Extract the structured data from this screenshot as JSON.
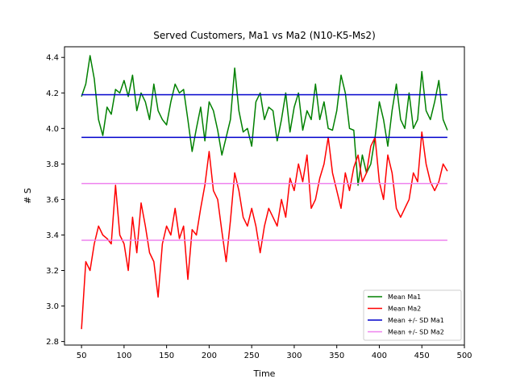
{
  "chart_data": {
    "type": "line",
    "title": "Served Customers, Ma1 vs Ma2 (N10-K5-Ms2)",
    "xlabel": "Time",
    "ylabel": "# S",
    "xlim": [
      30,
      500
    ],
    "ylim": [
      2.78,
      4.46
    ],
    "xticks": [
      50,
      100,
      150,
      200,
      250,
      300,
      350,
      400,
      450,
      500
    ],
    "yticks": [
      2.8,
      3.0,
      3.2,
      3.4,
      3.6,
      3.8,
      4.0,
      4.2,
      4.4
    ],
    "grid": false,
    "legend_position": "lower-right",
    "series": [
      {
        "name": "Mean Ma1",
        "color": "#008000",
        "x": [
          50,
          55,
          60,
          65,
          70,
          75,
          80,
          85,
          90,
          95,
          100,
          105,
          110,
          115,
          120,
          125,
          130,
          135,
          140,
          145,
          150,
          155,
          160,
          165,
          170,
          175,
          180,
          185,
          190,
          195,
          200,
          205,
          210,
          215,
          220,
          225,
          230,
          235,
          240,
          245,
          250,
          255,
          260,
          265,
          270,
          275,
          280,
          285,
          290,
          295,
          300,
          305,
          310,
          315,
          320,
          325,
          330,
          335,
          340,
          345,
          350,
          355,
          360,
          365,
          370,
          375,
          380,
          385,
          390,
          395,
          400,
          405,
          410,
          415,
          420,
          425,
          430,
          435,
          440,
          445,
          450,
          455,
          460,
          465,
          470,
          475,
          480
        ],
        "y": [
          4.18,
          4.25,
          4.41,
          4.28,
          4.05,
          3.96,
          4.12,
          4.08,
          4.22,
          4.2,
          4.27,
          4.18,
          4.3,
          4.1,
          4.2,
          4.15,
          4.05,
          4.25,
          4.1,
          4.05,
          4.02,
          4.15,
          4.25,
          4.2,
          4.22,
          4.05,
          3.87,
          4.0,
          4.12,
          3.93,
          4.15,
          4.1,
          3.99,
          3.85,
          3.95,
          4.05,
          4.34,
          4.1,
          3.98,
          4.0,
          3.9,
          4.15,
          4.2,
          4.05,
          4.12,
          4.1,
          3.93,
          4.05,
          4.2,
          3.98,
          4.12,
          4.2,
          3.99,
          4.1,
          4.05,
          4.25,
          4.05,
          4.15,
          4.0,
          3.99,
          4.1,
          4.3,
          4.2,
          4.0,
          3.99,
          3.68,
          3.85,
          3.75,
          3.8,
          3.95,
          4.15,
          4.05,
          3.9,
          4.1,
          4.25,
          4.05,
          4.0,
          4.2,
          4.0,
          4.05,
          4.32,
          4.1,
          4.05,
          4.15,
          4.27,
          4.05,
          3.99
        ]
      },
      {
        "name": "Mean Ma2",
        "color": "#ff0000",
        "x": [
          50,
          55,
          60,
          65,
          70,
          75,
          80,
          85,
          90,
          95,
          100,
          105,
          110,
          115,
          120,
          125,
          130,
          135,
          140,
          145,
          150,
          155,
          160,
          165,
          170,
          175,
          180,
          185,
          190,
          195,
          200,
          205,
          210,
          215,
          220,
          225,
          230,
          235,
          240,
          245,
          250,
          255,
          260,
          265,
          270,
          275,
          280,
          285,
          290,
          295,
          300,
          305,
          310,
          315,
          320,
          325,
          330,
          335,
          340,
          345,
          350,
          355,
          360,
          365,
          370,
          375,
          380,
          385,
          390,
          395,
          400,
          405,
          410,
          415,
          420,
          425,
          430,
          435,
          440,
          445,
          450,
          455,
          460,
          465,
          470,
          475,
          480
        ],
        "y": [
          2.87,
          3.25,
          3.2,
          3.35,
          3.45,
          3.4,
          3.38,
          3.35,
          3.68,
          3.4,
          3.35,
          3.2,
          3.5,
          3.3,
          3.58,
          3.45,
          3.3,
          3.25,
          3.05,
          3.35,
          3.45,
          3.4,
          3.55,
          3.38,
          3.45,
          3.15,
          3.43,
          3.4,
          3.55,
          3.68,
          3.87,
          3.65,
          3.6,
          3.42,
          3.25,
          3.48,
          3.75,
          3.65,
          3.5,
          3.45,
          3.55,
          3.45,
          3.3,
          3.45,
          3.55,
          3.5,
          3.45,
          3.6,
          3.5,
          3.72,
          3.65,
          3.8,
          3.7,
          3.85,
          3.55,
          3.6,
          3.72,
          3.8,
          3.95,
          3.75,
          3.65,
          3.55,
          3.75,
          3.65,
          3.78,
          3.85,
          3.7,
          3.75,
          3.9,
          3.95,
          3.7,
          3.6,
          3.85,
          3.75,
          3.55,
          3.5,
          3.55,
          3.6,
          3.75,
          3.7,
          3.98,
          3.8,
          3.7,
          3.65,
          3.7,
          3.8,
          3.76
        ]
      },
      {
        "name": "Mean +/- SD Ma1",
        "color": "#0000cc",
        "lines": [
          3.95,
          4.19
        ],
        "x_range": [
          50,
          480
        ]
      },
      {
        "name": "Mean +/- SD Ma2",
        "color": "#ee82ee",
        "lines": [
          3.37,
          3.69
        ],
        "x_range": [
          50,
          480
        ]
      }
    ]
  }
}
